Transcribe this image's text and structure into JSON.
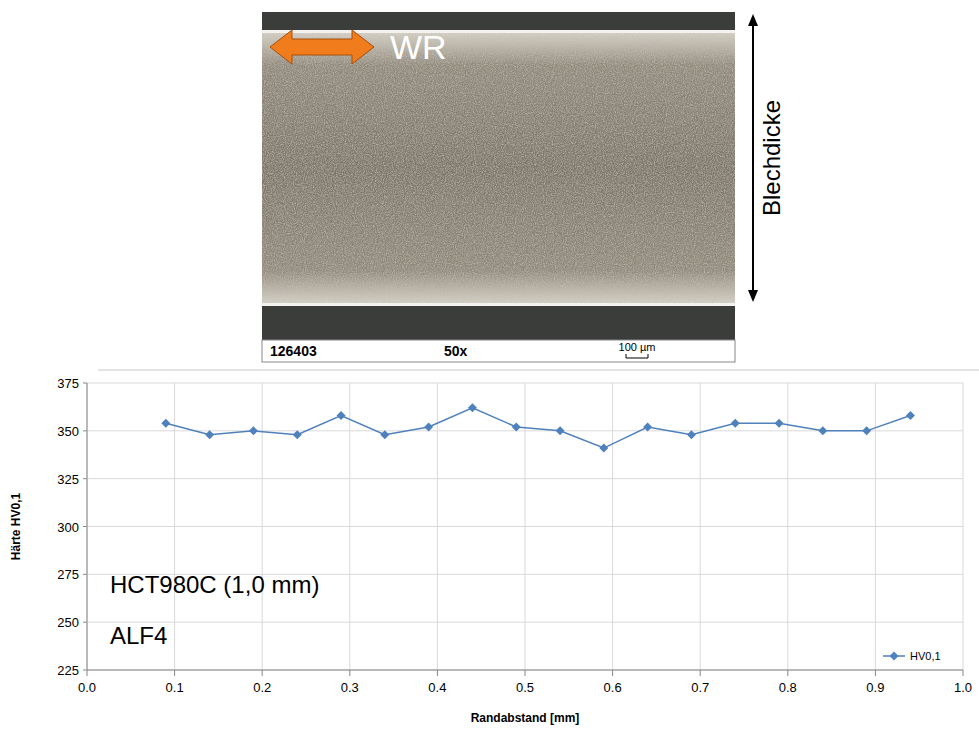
{
  "micrograph": {
    "sample_id": "126403",
    "magnification": "50x",
    "scale_bar": "100 µm",
    "direction_label": "WR",
    "thickness_label": "Blechdicke"
  },
  "chart_data": {
    "type": "line",
    "x_label": "Randabstand [mm]",
    "y_label": "Härte HV0,1",
    "annotations": [
      "HCT980C (1,0 mm)",
      "ALF4"
    ],
    "x": [
      0.09,
      0.14,
      0.19,
      0.24,
      0.29,
      0.34,
      0.39,
      0.44,
      0.49,
      0.54,
      0.59,
      0.64,
      0.69,
      0.74,
      0.79,
      0.84,
      0.89,
      0.94
    ],
    "series": [
      {
        "name": "HV0,1",
        "color": "#4f81bd",
        "marker": "diamond",
        "values": [
          354,
          348,
          350,
          348,
          358,
          348,
          352,
          362,
          352,
          350,
          341,
          352,
          348,
          354,
          354,
          350,
          350,
          358
        ]
      }
    ],
    "xlim": [
      0,
      1
    ],
    "xticks": [
      {
        "value": 0,
        "label": "0.0"
      },
      0.1,
      0.2,
      0.3,
      0.4,
      0.5,
      0.6,
      0.7,
      0.8,
      0.9,
      {
        "value": 1,
        "label": "1.0"
      }
    ],
    "ylim": [
      225,
      375
    ],
    "yticks": [
      225,
      250,
      275,
      300,
      325,
      350,
      375
    ],
    "grid": true,
    "legend": "lower right"
  }
}
